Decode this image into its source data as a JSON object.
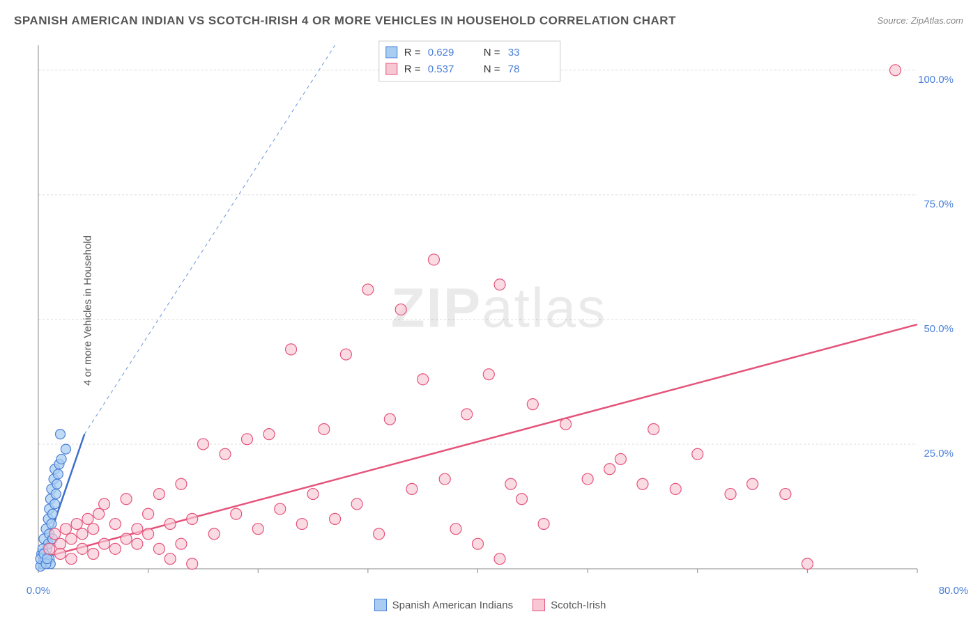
{
  "title": "SPANISH AMERICAN INDIAN VS SCOTCH-IRISH 4 OR MORE VEHICLES IN HOUSEHOLD CORRELATION CHART",
  "source": "Source: ZipAtlas.com",
  "y_axis_label": "4 or more Vehicles in Household",
  "watermark_prefix": "ZIP",
  "watermark_suffix": "atlas",
  "chart": {
    "type": "scatter",
    "background_color": "#ffffff",
    "grid_color": "#dcdcdc",
    "axis_color": "#888888",
    "tick_label_color": "#4a7fd8",
    "x_range": [
      0,
      80
    ],
    "y_range": [
      0,
      105
    ],
    "x_ticks": [
      0,
      10,
      20,
      30,
      40,
      50,
      60,
      70,
      80
    ],
    "x_tick_labels": {
      "0": "0.0%",
      "80": "80.0%"
    },
    "y_ticks": [
      25,
      50,
      75,
      100
    ],
    "y_tick_labels": {
      "25": "25.0%",
      "50": "50.0%",
      "75": "75.0%",
      "100": "100.0%"
    },
    "stats_box": {
      "rows": [
        {
          "swatch_fill": "#a9cdf1",
          "swatch_stroke": "#4a7fd8",
          "r_label": "R =",
          "r_value": "0.629",
          "n_label": "N =",
          "n_value": "33"
        },
        {
          "swatch_fill": "#f7c8d4",
          "swatch_stroke": "#e5537a",
          "r_label": "R =",
          "r_value": "0.537",
          "n_label": "N =",
          "n_value": "78"
        }
      ]
    },
    "series": [
      {
        "name": "Spanish American Indians",
        "marker_fill": "#a9cdf1",
        "marker_stroke": "#4a7fd8",
        "marker_radius": 7,
        "marker_opacity": 0.75,
        "trend": {
          "x1": 0,
          "y1": 0,
          "x2": 4.2,
          "y2": 27,
          "stroke": "#3f6fc9",
          "width": 2.5
        },
        "trend_dashed": {
          "x1": 4.2,
          "y1": 27,
          "x2": 27,
          "y2": 105,
          "stroke": "#6b93db",
          "width": 1,
          "dash": "5,5"
        },
        "points": [
          [
            0.3,
            3
          ],
          [
            0.4,
            1
          ],
          [
            0.5,
            6
          ],
          [
            0.7,
            8
          ],
          [
            0.8,
            4
          ],
          [
            0.9,
            10
          ],
          [
            1.0,
            12
          ],
          [
            1.0,
            7
          ],
          [
            1.1,
            14
          ],
          [
            1.2,
            9
          ],
          [
            1.2,
            16
          ],
          [
            1.3,
            11
          ],
          [
            1.4,
            18
          ],
          [
            1.5,
            13
          ],
          [
            1.5,
            20
          ],
          [
            1.6,
            15
          ],
          [
            1.7,
            17
          ],
          [
            1.8,
            19
          ],
          [
            1.9,
            21
          ],
          [
            2.0,
            27
          ],
          [
            2.1,
            22
          ],
          [
            2.5,
            24
          ],
          [
            0.6,
            2
          ],
          [
            0.9,
            5
          ],
          [
            1.0,
            2
          ],
          [
            1.1,
            1
          ],
          [
            0.2,
            0.5
          ],
          [
            0.2,
            2
          ],
          [
            0.4,
            4
          ],
          [
            0.5,
            3
          ],
          [
            0.7,
            1
          ],
          [
            0.8,
            2
          ],
          [
            1.3,
            6
          ]
        ]
      },
      {
        "name": "Scotch-Irish",
        "marker_fill": "#f7c8d4",
        "marker_stroke": "#e5537a",
        "marker_radius": 8,
        "marker_opacity": 0.65,
        "trend": {
          "x1": 0,
          "y1": 2,
          "x2": 80,
          "y2": 49,
          "stroke": "#e5537a",
          "width": 2.5
        },
        "points": [
          [
            1,
            4
          ],
          [
            1.5,
            7
          ],
          [
            2,
            5
          ],
          [
            2.5,
            8
          ],
          [
            3,
            6
          ],
          [
            3.5,
            9
          ],
          [
            4,
            7
          ],
          [
            4.5,
            10
          ],
          [
            5,
            8
          ],
          [
            5.5,
            11
          ],
          [
            6,
            13
          ],
          [
            7,
            9
          ],
          [
            8,
            14
          ],
          [
            9,
            8
          ],
          [
            10,
            11
          ],
          [
            11,
            15
          ],
          [
            12,
            9
          ],
          [
            13,
            17
          ],
          [
            14,
            10
          ],
          [
            15,
            25
          ],
          [
            16,
            7
          ],
          [
            17,
            23
          ],
          [
            18,
            11
          ],
          [
            19,
            26
          ],
          [
            20,
            8
          ],
          [
            21,
            27
          ],
          [
            22,
            12
          ],
          [
            23,
            44
          ],
          [
            24,
            9
          ],
          [
            25,
            15
          ],
          [
            26,
            28
          ],
          [
            27,
            10
          ],
          [
            28,
            43
          ],
          [
            29,
            13
          ],
          [
            30,
            56
          ],
          [
            31,
            7
          ],
          [
            32,
            30
          ],
          [
            33,
            52
          ],
          [
            34,
            16
          ],
          [
            35,
            38
          ],
          [
            36,
            62
          ],
          [
            37,
            18
          ],
          [
            38,
            8
          ],
          [
            39,
            31
          ],
          [
            40,
            5
          ],
          [
            41,
            39
          ],
          [
            42,
            57
          ],
          [
            43,
            17
          ],
          [
            44,
            14
          ],
          [
            45,
            33
          ],
          [
            46,
            9
          ],
          [
            48,
            29
          ],
          [
            50,
            18
          ],
          [
            52,
            20
          ],
          [
            53,
            22
          ],
          [
            55,
            17
          ],
          [
            56,
            28
          ],
          [
            58,
            16
          ],
          [
            60,
            23
          ],
          [
            63,
            15
          ],
          [
            65,
            17
          ],
          [
            68,
            15
          ],
          [
            70,
            1
          ],
          [
            78,
            100
          ],
          [
            2,
            3
          ],
          [
            3,
            2
          ],
          [
            4,
            4
          ],
          [
            5,
            3
          ],
          [
            6,
            5
          ],
          [
            7,
            4
          ],
          [
            8,
            6
          ],
          [
            9,
            5
          ],
          [
            10,
            7
          ],
          [
            11,
            4
          ],
          [
            12,
            2
          ],
          [
            13,
            5
          ],
          [
            14,
            1
          ],
          [
            42,
            2
          ]
        ]
      }
    ],
    "bottom_legend": [
      {
        "label": "Spanish American Indians",
        "fill": "#a9cdf1",
        "stroke": "#4a7fd8"
      },
      {
        "label": "Scotch-Irish",
        "fill": "#f7c8d4",
        "stroke": "#e5537a"
      }
    ]
  }
}
